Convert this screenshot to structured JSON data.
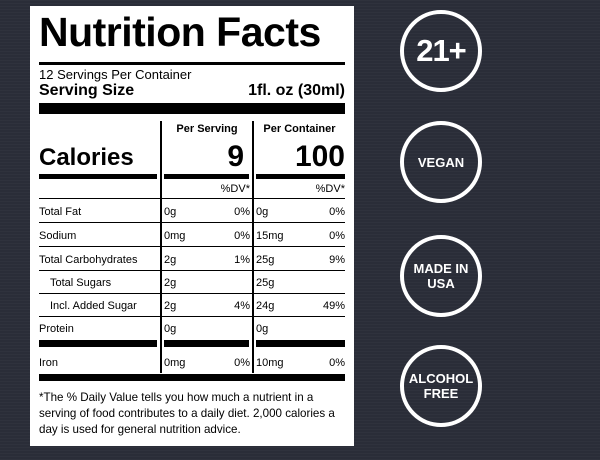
{
  "label": {
    "title": "Nutrition Facts",
    "servings_per_container": "12 Servings Per Container",
    "serving_size_label": "Serving Size",
    "serving_size_value": "1fl. oz (30ml)",
    "per_serving_header": "Per Serving",
    "per_container_header": "Per Container",
    "calories_label": "Calories",
    "calories_per_serving": "9",
    "calories_per_container": "100",
    "dv_header": "%DV*",
    "nutrients": [
      {
        "name": "Total Fat",
        "serving_amount": "0g",
        "serving_dv": "0%",
        "container_amount": "0g",
        "container_dv": "0%"
      },
      {
        "name": "Sodium",
        "serving_amount": "0mg",
        "serving_dv": "0%",
        "container_amount": "15mg",
        "container_dv": "0%"
      },
      {
        "name": "Total Carbohydrates",
        "serving_amount": "2g",
        "serving_dv": "1%",
        "container_amount": "25g",
        "container_dv": "9%"
      },
      {
        "name": "Total Sugars",
        "serving_amount": "2g",
        "serving_dv": "",
        "container_amount": "25g",
        "container_dv": ""
      },
      {
        "name": "Incl. Added Sugar",
        "serving_amount": "2g",
        "serving_dv": "4%",
        "container_amount": "24g",
        "container_dv": "49%"
      },
      {
        "name": "Protein",
        "serving_amount": "0g",
        "serving_dv": "",
        "container_amount": "0g",
        "container_dv": ""
      },
      {
        "name": "Iron",
        "serving_amount": "0mg",
        "serving_dv": "0%",
        "container_amount": "10mg",
        "container_dv": "0%"
      }
    ],
    "footnote": "*The % Daily Value tells you how much a nutrient in a serving of food contributes to a daily diet. 2,000 calories a day is used for general nutrition advice."
  },
  "badges": [
    {
      "text": "21+"
    },
    {
      "text": "VEGAN"
    },
    {
      "text": "MADE IN USA"
    },
    {
      "text": "ALCOHOL FREE"
    }
  ],
  "colors": {
    "background": "#2a2d38",
    "label": "#ffffff",
    "ink": "#000000",
    "badge": "#ffffff"
  }
}
